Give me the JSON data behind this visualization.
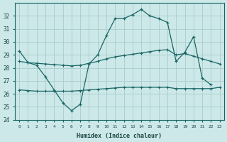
{
  "xlabel": "Humidex (Indice chaleur)",
  "background_color": "#cce8e8",
  "grid_color": "#aacccc",
  "line_color": "#1a6666",
  "x": [
    0,
    1,
    2,
    3,
    4,
    5,
    6,
    7,
    8,
    9,
    10,
    11,
    12,
    13,
    14,
    15,
    16,
    17,
    18,
    19,
    20,
    21,
    22,
    23
  ],
  "line1": [
    29.3,
    28.4,
    null,
    null,
    null,
    null,
    null,
    null,
    null,
    29.0,
    30.5,
    31.8,
    31.8,
    32.1,
    32.5,
    32.0,
    31.8,
    null,
    null,
    null,
    30.4,
    null,
    26.7,
    null
  ],
  "line1_full": [
    29.3,
    28.4,
    28.2,
    27.3,
    26.3,
    25.3,
    24.7,
    25.2,
    28.3,
    29.0,
    30.5,
    31.8,
    31.8,
    32.1,
    32.5,
    32.0,
    31.8,
    31.5,
    28.5,
    29.2,
    30.4,
    27.2,
    26.7,
    null
  ],
  "line2": [
    28.5,
    28.4,
    28.35,
    28.3,
    28.25,
    28.2,
    28.15,
    28.2,
    28.35,
    28.5,
    28.7,
    28.85,
    28.95,
    29.05,
    29.15,
    29.25,
    29.35,
    29.4,
    29.0,
    29.1,
    28.9,
    28.7,
    28.5,
    28.3
  ],
  "line3": [
    26.3,
    26.25,
    26.2,
    26.2,
    26.2,
    26.2,
    26.2,
    26.25,
    26.3,
    26.35,
    26.4,
    26.45,
    26.5,
    26.5,
    26.5,
    26.5,
    26.5,
    26.5,
    26.4,
    26.4,
    26.4,
    26.4,
    26.4,
    26.5
  ],
  "ylim": [
    24,
    33
  ],
  "yticks": [
    24,
    25,
    26,
    27,
    28,
    29,
    30,
    31,
    32
  ],
  "xticks": [
    0,
    1,
    2,
    3,
    4,
    5,
    6,
    7,
    8,
    9,
    10,
    11,
    12,
    13,
    14,
    15,
    16,
    17,
    18,
    19,
    20,
    21,
    22,
    23
  ]
}
